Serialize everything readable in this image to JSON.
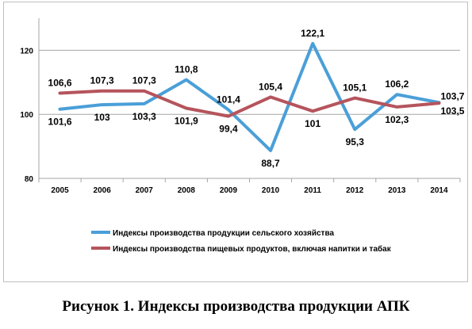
{
  "caption": "Рисунок 1. Индексы производства продукции АПК",
  "chart_data": {
    "type": "line",
    "categories": [
      "2005",
      "2006",
      "2007",
      "2008",
      "2009",
      "2010",
      "2011",
      "2012",
      "2013",
      "2014"
    ],
    "series": [
      {
        "name": "Индексы производства продукции сельского хозяйства",
        "color": "#4a9fd8",
        "values": [
          101.6,
          103,
          103.3,
          110.8,
          101.4,
          88.7,
          122.1,
          95.3,
          106.2,
          103.7
        ],
        "labels": [
          "101,6",
          "103",
          "103,3",
          "110,8",
          "101,4",
          "88,7",
          "122,1",
          "95,3",
          "106,2",
          "103,7"
        ]
      },
      {
        "name": "Индексы производства пищевых продуктов, включая напитки и табак",
        "color": "#b5545c",
        "values": [
          106.6,
          107.3,
          107.3,
          101.9,
          99.4,
          105.4,
          101,
          105.1,
          102.3,
          103.5
        ],
        "labels": [
          "106,6",
          "107,3",
          "107,3",
          "101,9",
          "99,4",
          "105,4",
          "101",
          "105,1",
          "102,3",
          "103,5"
        ]
      }
    ],
    "y_ticks": [
      80,
      100,
      120
    ],
    "ylim": [
      80,
      130
    ],
    "grid": true,
    "legend": "bottom"
  }
}
